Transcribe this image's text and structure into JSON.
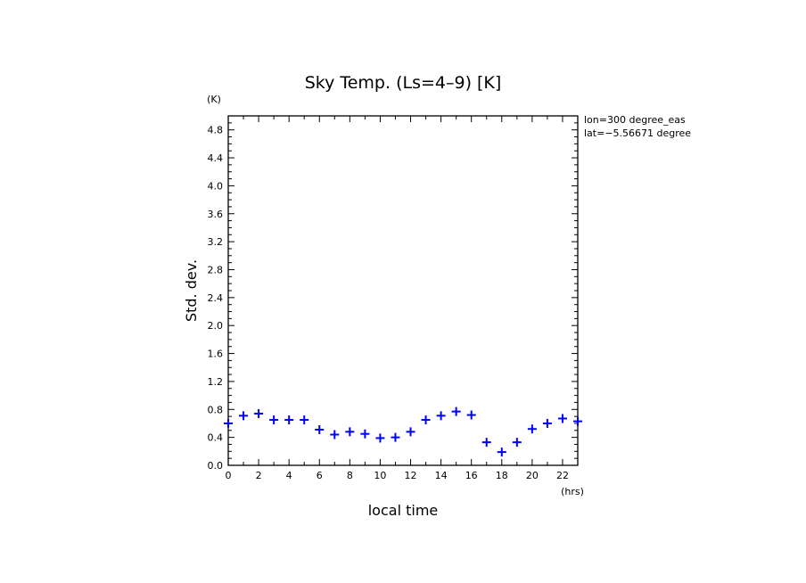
{
  "chart_data": {
    "type": "scatter",
    "title": "Sky Temp. (Ls=4–9) [K]",
    "xlabel": "local time",
    "ylabel": "Std. dev.",
    "x_unit": "(hrs)",
    "y_unit": "(K)",
    "xlim": [
      0,
      23
    ],
    "ylim": [
      0,
      5.0
    ],
    "x_ticks": [
      "0",
      "2",
      "4",
      "6",
      "8",
      "10",
      "12",
      "14",
      "16",
      "18",
      "20",
      "22"
    ],
    "y_ticks": [
      "0.0",
      "0.4",
      "0.8",
      "1.2",
      "1.6",
      "2.0",
      "2.4",
      "2.8",
      "3.2",
      "3.6",
      "4.0",
      "4.4",
      "4.8"
    ],
    "annotations": [
      "lon=300 degree_eas",
      "lat=−5.56671 degree"
    ],
    "marker": "+",
    "color": "#0000ff",
    "grid": false,
    "x": [
      0,
      1,
      2,
      3,
      4,
      5,
      6,
      7,
      8,
      9,
      10,
      11,
      12,
      13,
      14,
      15,
      16,
      17,
      18,
      19,
      20,
      21,
      22,
      23
    ],
    "y": [
      0.6,
      0.71,
      0.74,
      0.65,
      0.65,
      0.65,
      0.51,
      0.44,
      0.48,
      0.45,
      0.39,
      0.4,
      0.48,
      0.65,
      0.71,
      0.77,
      0.72,
      0.33,
      0.19,
      0.33,
      0.52,
      0.6,
      0.67,
      0.63
    ]
  }
}
